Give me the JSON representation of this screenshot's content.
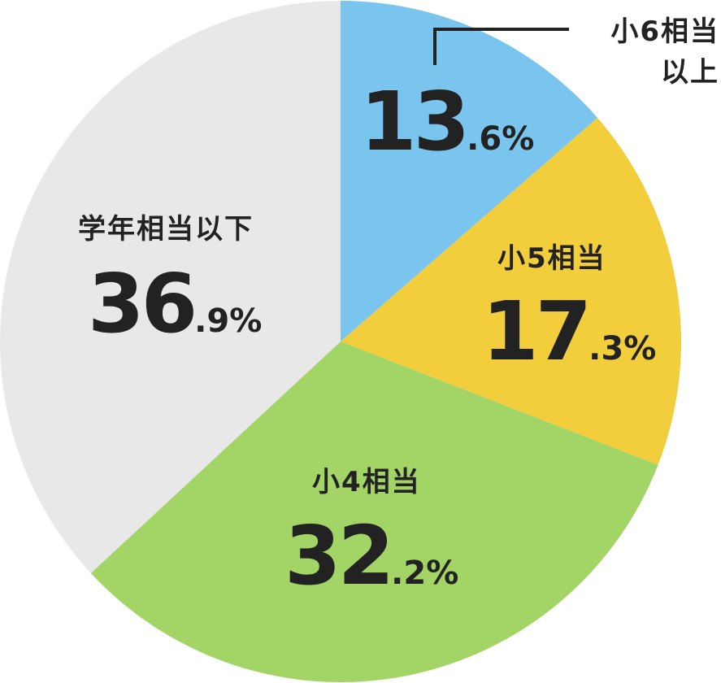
{
  "chart_data": {
    "type": "pie",
    "start": "top",
    "direction": "clockwise",
    "slices": [
      {
        "label": "小6相当以上",
        "label_lines": [
          "小6相当",
          "以上"
        ],
        "value": 13.6,
        "color": "#79C5EE"
      },
      {
        "label": "小5相当",
        "label_lines": [
          "小5相当"
        ],
        "value": 17.3,
        "color": "#F2CD3C"
      },
      {
        "label": "小4相当",
        "label_lines": [
          "小4相当"
        ],
        "value": 32.2,
        "color": "#A2D566"
      },
      {
        "label": "学年相当以下",
        "label_lines": [
          "学年相当以下"
        ],
        "value": 36.9,
        "color": "#E8E8E8"
      }
    ],
    "unit": "%"
  }
}
